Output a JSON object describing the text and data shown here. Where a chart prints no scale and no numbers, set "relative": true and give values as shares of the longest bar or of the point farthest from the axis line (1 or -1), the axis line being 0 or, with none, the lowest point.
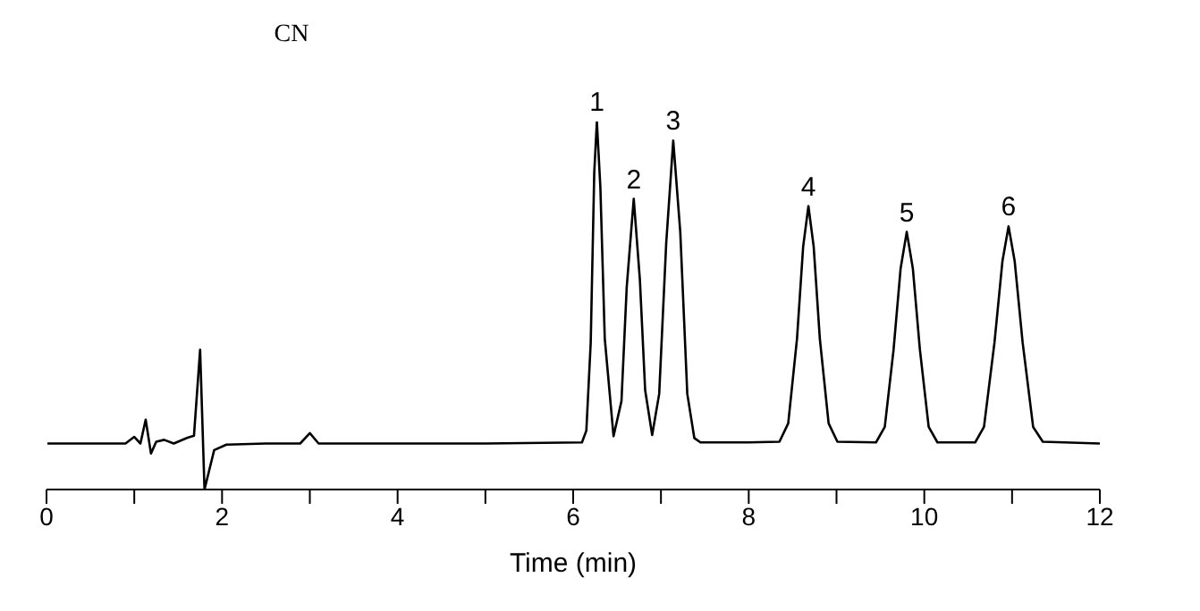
{
  "chart_data": {
    "type": "line",
    "title": "CN",
    "xlabel": "Time (min)",
    "relative": true,
    "xlim": [
      0,
      12
    ],
    "xticks": [
      0,
      {
        "value": 1,
        "label": null
      },
      2,
      {
        "value": 3,
        "label": null
      },
      4,
      {
        "value": 5,
        "label": null
      },
      6,
      {
        "value": 7,
        "label": null
      },
      8,
      {
        "value": 9,
        "label": null
      },
      10,
      {
        "value": 11,
        "label": null
      },
      12
    ],
    "grid": false,
    "marker": "none",
    "line_style": "solid",
    "annotations": [
      {
        "text": "1",
        "x": 6.27,
        "y": 1.0
      },
      {
        "text": "2",
        "x": 6.69,
        "y": 0.79
      },
      {
        "text": "3",
        "x": 7.14,
        "y": 0.948
      },
      {
        "text": "4",
        "x": 8.68,
        "y": 0.77
      },
      {
        "text": "5",
        "x": 9.8,
        "y": 0.7
      },
      {
        "text": "6",
        "x": 10.96,
        "y": 0.715
      }
    ],
    "series": [
      {
        "color": "#000000",
        "x": [
          0.01,
          0.9,
          1.0,
          1.07,
          1.13,
          1.19,
          1.25,
          1.34,
          1.45,
          1.6,
          1.68,
          1.75,
          1.8,
          1.91,
          2.05,
          2.5,
          2.89,
          3.0,
          3.1,
          5.0,
          6.1,
          6.15,
          6.2,
          6.24,
          6.27,
          6.31,
          6.36,
          6.46,
          6.55,
          6.61,
          6.69,
          6.76,
          6.82,
          6.9,
          6.98,
          7.06,
          7.14,
          7.22,
          7.3,
          7.38,
          7.45,
          8.0,
          8.35,
          8.45,
          8.55,
          8.62,
          8.68,
          8.74,
          8.81,
          8.91,
          9.01,
          9.45,
          9.55,
          9.65,
          9.73,
          9.8,
          9.87,
          9.95,
          10.05,
          10.15,
          10.58,
          10.68,
          10.8,
          10.89,
          10.96,
          11.03,
          11.12,
          11.24,
          11.35,
          12.0
        ],
        "values": [
          0.125,
          0.125,
          0.143,
          0.125,
          0.19,
          0.098,
          0.13,
          0.135,
          0.125,
          0.14,
          0.146,
          0.38,
          0.0,
          0.107,
          0.122,
          0.125,
          0.125,
          0.153,
          0.125,
          0.125,
          0.128,
          0.16,
          0.4,
          0.86,
          1.0,
          0.82,
          0.41,
          0.145,
          0.24,
          0.55,
          0.79,
          0.57,
          0.27,
          0.148,
          0.26,
          0.67,
          0.948,
          0.7,
          0.26,
          0.14,
          0.128,
          0.128,
          0.13,
          0.18,
          0.41,
          0.66,
          0.77,
          0.66,
          0.41,
          0.18,
          0.13,
          0.128,
          0.17,
          0.38,
          0.6,
          0.7,
          0.6,
          0.38,
          0.17,
          0.128,
          0.128,
          0.17,
          0.4,
          0.62,
          0.715,
          0.62,
          0.4,
          0.17,
          0.13,
          0.125
        ]
      }
    ]
  }
}
